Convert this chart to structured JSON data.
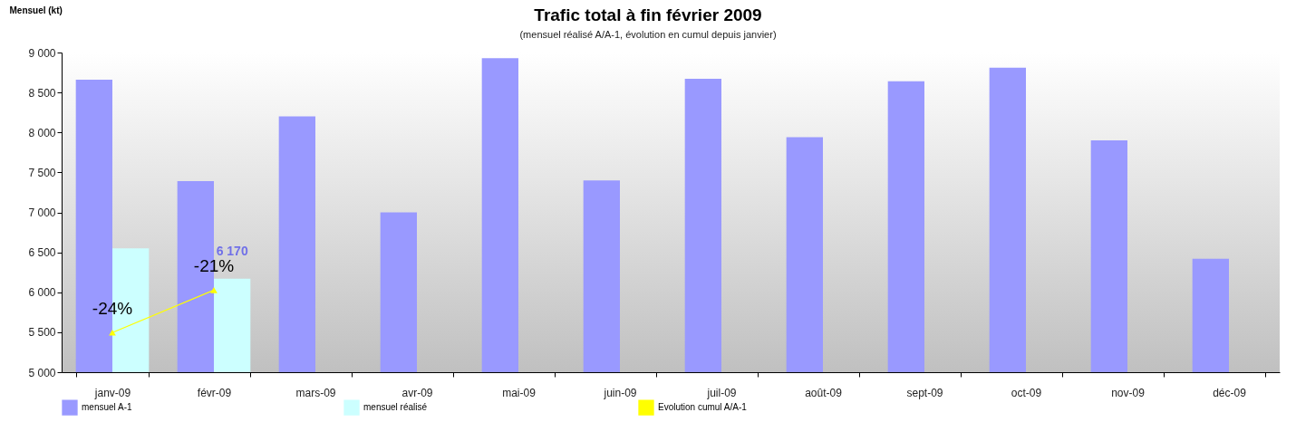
{
  "chart_data": {
    "type": "bar",
    "title": "Trafic total à fin février 2009",
    "subtitle": "(mensuel réalisé A/A-1, évolution en cumul depuis janvier)",
    "ylabel": "Mensuel (kt)",
    "categories": [
      "janv-09",
      "févr-09",
      "mars-09",
      "avr-09",
      "mai-09",
      "juin-09",
      "juil-09",
      "août-09",
      "sept-09",
      "oct-09",
      "nov-09",
      "déc-09"
    ],
    "series": [
      {
        "name": "mensuel A-1",
        "color": "#9999ff",
        "values": [
          8660,
          7390,
          8200,
          7000,
          8930,
          7400,
          8670,
          7940,
          8640,
          8810,
          7900,
          6420
        ]
      },
      {
        "name": "mensuel réalisé",
        "color": "#ccffff",
        "values": [
          6550,
          6170,
          null,
          null,
          null,
          null,
          null,
          null,
          null,
          null,
          null,
          null
        ],
        "value_labels": [
          null,
          "6 170",
          null,
          null,
          null,
          null,
          null,
          null,
          null,
          null,
          null,
          null
        ]
      },
      {
        "name": "Evolution cumul A/A-1",
        "type": "line",
        "axis": "y2",
        "color": "#ffff00",
        "marker": "triangle",
        "values": [
          -24,
          -21,
          null,
          null,
          null,
          null,
          null,
          null,
          null,
          null,
          null,
          null
        ],
        "value_labels": [
          "-24%",
          "-21%",
          null,
          null,
          null,
          null,
          null,
          null,
          null,
          null,
          null,
          null
        ]
      }
    ],
    "ylim": [
      5000,
      9000
    ],
    "yticks": [
      {
        "value": 5000,
        "label": "5 000"
      },
      {
        "value": 5500,
        "label": "5 500"
      },
      {
        "value": 6000,
        "label": "6 000"
      },
      {
        "value": 6500,
        "label": "6 500"
      },
      {
        "value": 7000,
        "label": "7 000"
      },
      {
        "value": 7500,
        "label": "7 500"
      },
      {
        "value": 8000,
        "label": "8 000"
      },
      {
        "value": 8500,
        "label": "8 500"
      },
      {
        "value": 9000,
        "label": "9 000"
      }
    ],
    "y2lim": [
      -26.8,
      -4.2
    ],
    "legend": "bottom",
    "grid": false
  }
}
